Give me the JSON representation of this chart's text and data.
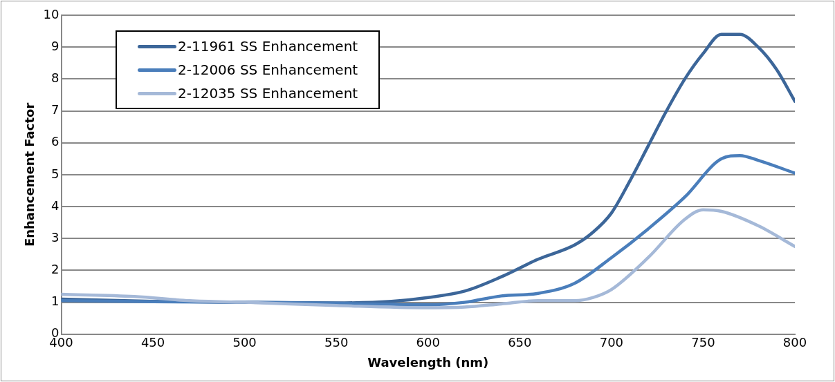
{
  "chart_data": {
    "type": "line",
    "xlabel": "Wavelength (nm)",
    "ylabel": "Enhancement Factor",
    "xlim": [
      400,
      800
    ],
    "xticks": [
      400,
      450,
      500,
      550,
      600,
      650,
      700,
      750,
      800
    ],
    "ylim": [
      0,
      10
    ],
    "yticks": [
      0,
      1,
      2,
      3,
      4,
      5,
      6,
      7,
      8,
      9,
      10
    ],
    "grid": "y",
    "legend": "top left",
    "marker": "none",
    "line_style": "solid",
    "series": [
      {
        "name": "2-11961 SS Enhancement",
        "color": "#3c6699",
        "x": [
          400,
          450,
          500,
          550,
          580,
          600,
          620,
          640,
          660,
          680,
          690,
          700,
          710,
          720,
          730,
          740,
          750,
          760,
          770,
          780,
          790,
          800
        ],
        "values": [
          1.1,
          1.03,
          1.0,
          0.98,
          1.03,
          1.15,
          1.35,
          1.8,
          2.35,
          2.8,
          3.2,
          3.8,
          4.8,
          5.9,
          7.0,
          8.0,
          8.8,
          9.4,
          9.4,
          9.0,
          8.3,
          7.3
        ]
      },
      {
        "name": "2-12006 SS Enhancement",
        "color": "#4a7ebb",
        "x": [
          400,
          450,
          500,
          550,
          600,
          620,
          640,
          660,
          680,
          700,
          720,
          740,
          760,
          770,
          780,
          800
        ],
        "values": [
          1.05,
          1.02,
          1.0,
          0.97,
          0.92,
          1.0,
          1.2,
          1.28,
          1.6,
          2.4,
          3.3,
          4.3,
          5.5,
          5.6,
          5.45,
          5.05
        ]
      },
      {
        "name": "2-12035 SS Enhancement",
        "color": "#a5b9d8",
        "x": [
          400,
          440,
          470,
          500,
          550,
          600,
          620,
          640,
          660,
          680,
          690,
          700,
          720,
          740,
          750,
          760,
          780,
          800
        ],
        "values": [
          1.25,
          1.18,
          1.05,
          1.0,
          0.9,
          0.83,
          0.85,
          0.95,
          1.05,
          1.05,
          1.15,
          1.4,
          2.4,
          3.6,
          3.9,
          3.85,
          3.4,
          2.75
        ]
      }
    ]
  }
}
